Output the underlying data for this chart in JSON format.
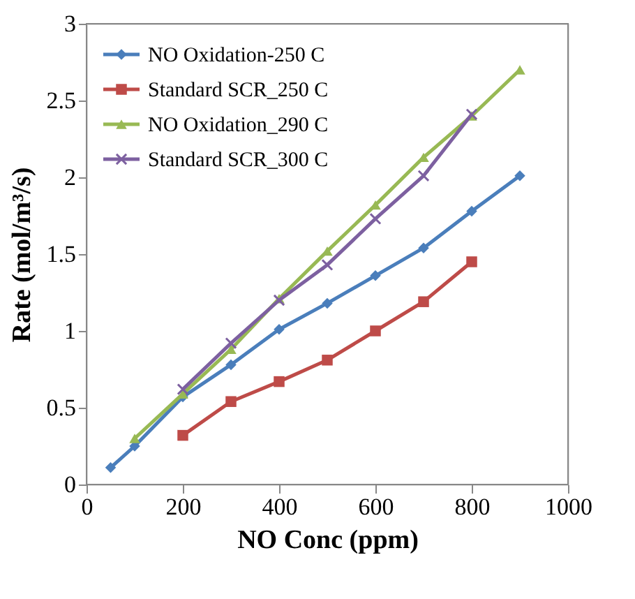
{
  "chart_data": {
    "type": "line",
    "xlabel": "NO Conc (ppm)",
    "ylabel": "Rate (mol/m³/s)",
    "xlim": [
      0,
      1000
    ],
    "xticks": [
      0,
      200,
      400,
      600,
      800,
      1000
    ],
    "ylim": [
      0,
      3
    ],
    "yticks": [
      0,
      0.5,
      1,
      1.5,
      2,
      2.5,
      3
    ],
    "line_style": "solid",
    "grid": false,
    "legend": "top left",
    "series": [
      {
        "name": "NO Oxidation-250 C",
        "color": "#4a7ebb",
        "marker": "diamond",
        "x": [
          50,
          100,
          200,
          300,
          400,
          500,
          600,
          700,
          800,
          900
        ],
        "values": [
          0.11,
          0.25,
          0.57,
          0.78,
          1.01,
          1.18,
          1.36,
          1.54,
          1.78,
          2.01
        ]
      },
      {
        "name": "Standard SCR_250 C",
        "color": "#be4b48",
        "marker": "square",
        "x": [
          200,
          300,
          400,
          500,
          600,
          700,
          800
        ],
        "values": [
          0.32,
          0.54,
          0.67,
          0.81,
          1.0,
          1.19,
          1.45
        ]
      },
      {
        "name": "NO Oxidation_290 C",
        "color": "#98b954",
        "marker": "triangle",
        "x": [
          100,
          200,
          300,
          400,
          500,
          600,
          700,
          800,
          900
        ],
        "values": [
          0.3,
          0.59,
          0.88,
          1.21,
          1.52,
          1.82,
          2.13,
          2.4,
          2.7
        ]
      },
      {
        "name": "Standard SCR_300 C",
        "color": "#7d60a0",
        "marker": "cross",
        "x": [
          200,
          300,
          400,
          500,
          600,
          700,
          800
        ],
        "values": [
          0.62,
          0.92,
          1.2,
          1.43,
          1.73,
          2.01,
          2.41
        ]
      }
    ]
  }
}
